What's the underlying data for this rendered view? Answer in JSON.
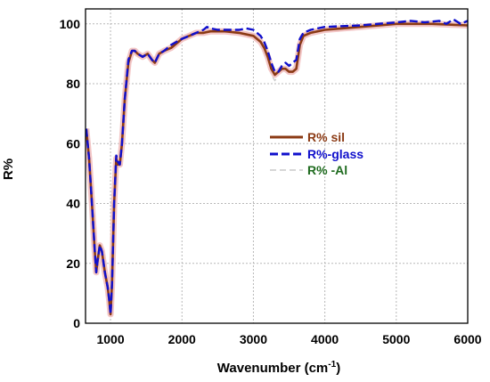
{
  "chart_data": {
    "type": "line",
    "title": "",
    "xlabel": "Wavenumber (cm",
    "xlabel_sup": "-1",
    "xlabel_close": ")",
    "ylabel": "R%",
    "xlim": [
      650,
      6000
    ],
    "ylim": [
      0,
      105
    ],
    "xticks": [
      1000,
      2000,
      3000,
      4000,
      5000,
      6000
    ],
    "yticks": [
      0,
      20,
      40,
      60,
      80,
      100
    ],
    "grid": true,
    "legend_position": "center-right",
    "series": [
      {
        "name": "R% sil",
        "color": "#8B3A14",
        "style": "solid",
        "x": [
          660,
          700,
          740,
          780,
          800,
          820,
          850,
          880,
          920,
          960,
          980,
          1000,
          1020,
          1050,
          1080,
          1100,
          1130,
          1160,
          1200,
          1250,
          1300,
          1340,
          1380,
          1450,
          1520,
          1580,
          1620,
          1680,
          1750,
          1850,
          2000,
          2100,
          2200,
          2300,
          2400,
          2500,
          2600,
          2800,
          3000,
          3100,
          3150,
          3200,
          3250,
          3300,
          3350,
          3400,
          3450,
          3500,
          3550,
          3600,
          3650,
          3700,
          3800,
          4000,
          4500,
          5000,
          5500,
          6000
        ],
        "values": [
          65,
          55,
          40,
          24,
          17,
          21,
          26,
          24,
          17,
          12,
          8,
          3,
          13,
          40,
          55,
          53,
          53,
          60,
          75,
          87,
          91,
          91,
          90,
          89,
          90,
          88,
          87,
          90,
          91,
          92,
          95,
          96,
          97,
          97,
          97.5,
          97.5,
          97.5,
          97,
          96,
          94,
          92,
          89,
          85,
          83,
          84,
          85,
          85,
          84,
          84,
          85,
          93,
          96,
          97,
          98,
          99,
          100,
          100,
          99.5
        ]
      },
      {
        "name": "R%-glass",
        "color": "#1010CC",
        "style": "dashed",
        "x": [
          660,
          700,
          740,
          780,
          800,
          820,
          850,
          880,
          920,
          960,
          980,
          1000,
          1020,
          1050,
          1080,
          1100,
          1130,
          1160,
          1200,
          1250,
          1300,
          1340,
          1380,
          1450,
          1520,
          1580,
          1620,
          1680,
          1750,
          1850,
          2000,
          2100,
          2200,
          2300,
          2350,
          2400,
          2500,
          2600,
          2800,
          2900,
          3000,
          3100,
          3150,
          3200,
          3250,
          3300,
          3350,
          3400,
          3450,
          3500,
          3550,
          3600,
          3650,
          3700,
          3800,
          4000,
          4500,
          5000,
          5200,
          5400,
          5600,
          5700,
          5800,
          5900,
          6000
        ],
        "values": [
          65,
          55,
          40,
          24,
          17,
          21,
          26,
          24,
          17,
          12,
          8,
          3,
          13,
          40,
          56,
          54,
          53,
          60,
          75,
          88,
          91,
          91,
          90,
          89,
          90,
          88,
          87,
          90,
          91,
          93,
          95,
          96,
          97,
          98,
          99,
          98.5,
          98,
          98,
          98,
          98.5,
          98,
          96,
          94,
          91,
          87,
          84,
          84,
          86,
          87,
          86,
          87,
          88,
          95,
          97,
          98,
          99,
          99.5,
          100.5,
          101,
          100.5,
          101,
          100,
          101.5,
          100,
          101
        ]
      },
      {
        "name": "R% -Al",
        "color": "#C8C8C8",
        "style": "dashed",
        "x": [
          660,
          700,
          740,
          780,
          800,
          820,
          850,
          880,
          920,
          960,
          980,
          1000,
          1020,
          1050,
          1080,
          1100,
          1130,
          1160,
          1200,
          1250,
          1300,
          1340,
          1380,
          1450,
          1520,
          1580,
          1620,
          1680,
          1750,
          1850,
          2000,
          2200,
          2400,
          2600,
          2800,
          3000,
          3100,
          3200,
          3250,
          3300,
          3350,
          3400,
          3500,
          3600,
          3650,
          3700,
          3800,
          4000,
          4500,
          5000,
          5500,
          6000
        ],
        "values": [
          65,
          55,
          40,
          24,
          17,
          21,
          26,
          24,
          17,
          12,
          8,
          3,
          13,
          40,
          55,
          53,
          53,
          60,
          75,
          87,
          91,
          91,
          90,
          89,
          90,
          88,
          87,
          90,
          91,
          92,
          95,
          97,
          97.5,
          97.5,
          97,
          95,
          93,
          88,
          83,
          81,
          83,
          85,
          85,
          86,
          93,
          96,
          97,
          98,
          99,
          100,
          100,
          99.5
        ]
      }
    ]
  }
}
